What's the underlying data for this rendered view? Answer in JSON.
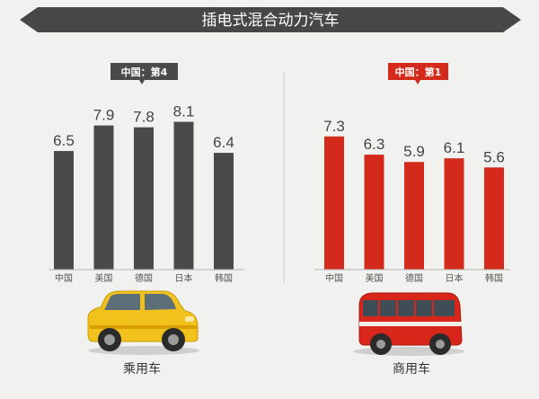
{
  "title": "插电式混合动力汽车",
  "chart_data": [
    {
      "type": "bar",
      "tag": "中国：第4",
      "label": "乘用车",
      "color": "#4a4a4a",
      "categories": [
        "中国",
        "美国",
        "德国",
        "日本",
        "韩国"
      ],
      "values": [
        6.5,
        7.9,
        7.8,
        8.1,
        6.4
      ]
    },
    {
      "type": "bar",
      "tag": "中国：第1",
      "label": "商用车",
      "color": "#d42a1c",
      "categories": [
        "中国",
        "美国",
        "德国",
        "日本",
        "韩国"
      ],
      "values": [
        7.3,
        6.3,
        5.9,
        6.1,
        5.6
      ]
    }
  ],
  "icons": [
    "car-icon",
    "bus-icon"
  ]
}
